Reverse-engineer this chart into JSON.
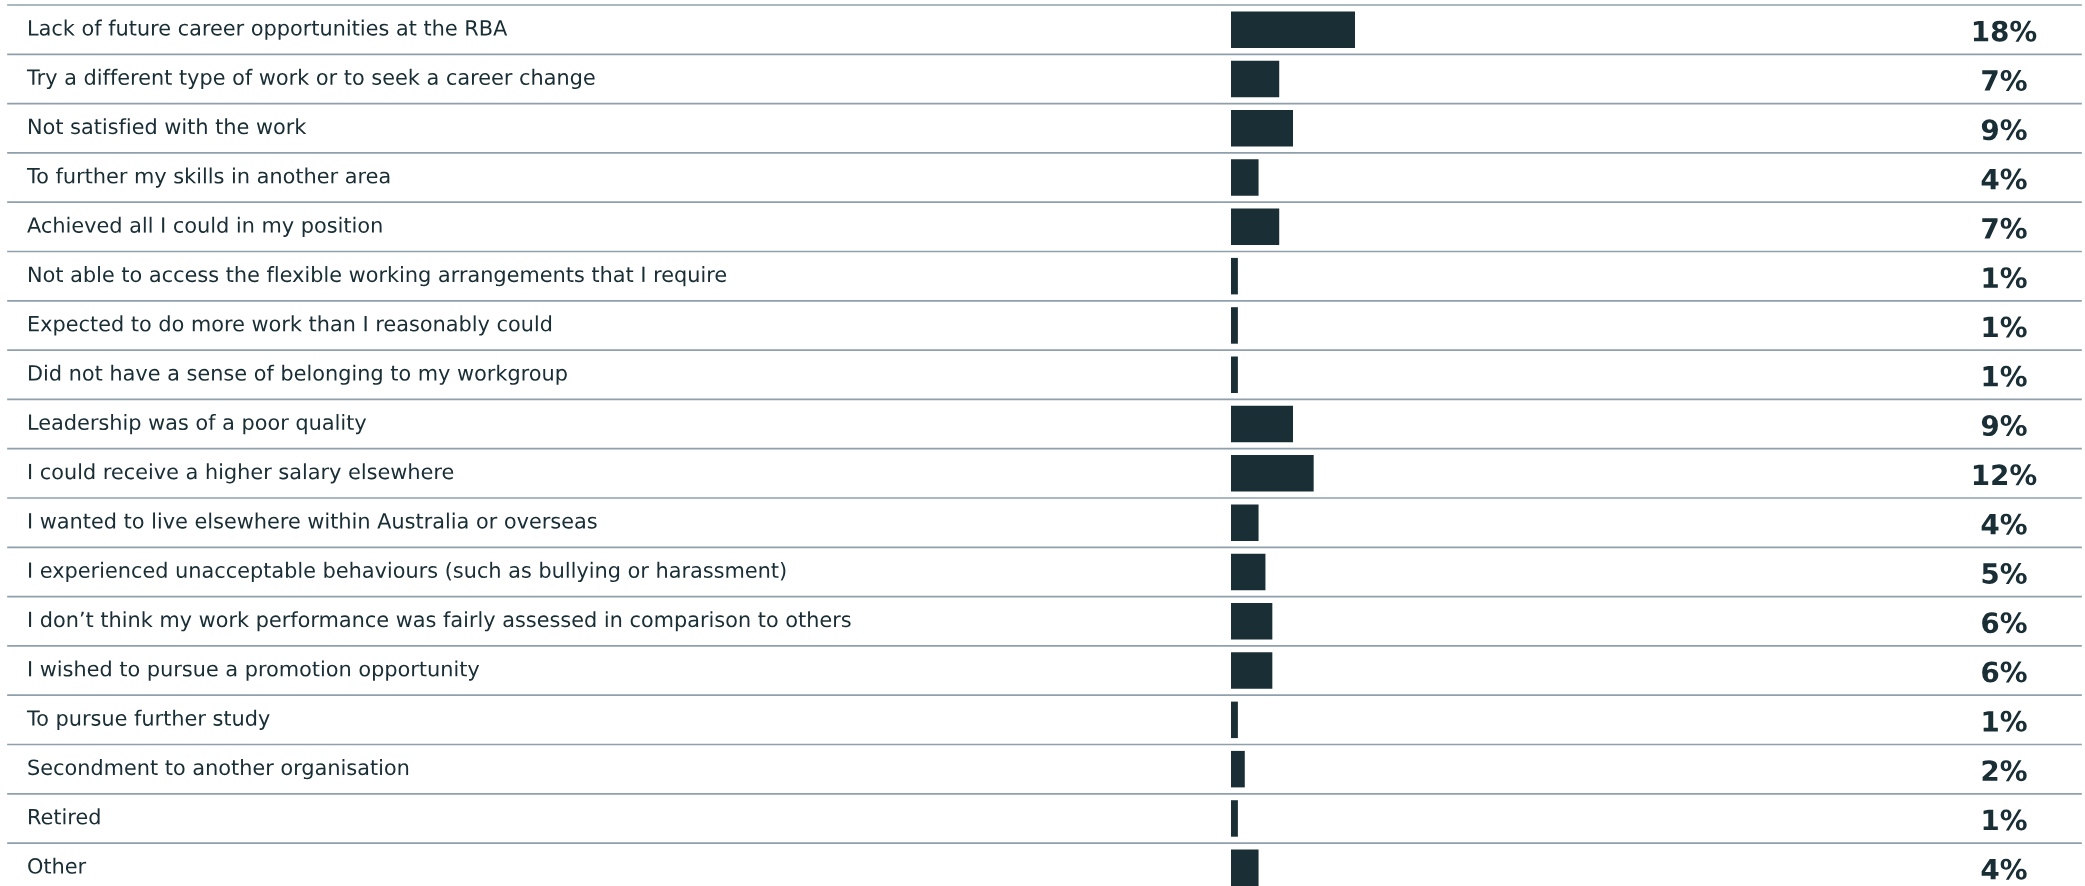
{
  "chart_data": {
    "type": "bar",
    "orientation": "horizontal",
    "categories": [
      "Lack of future career opportunities at the RBA",
      "Try a different type of work or to seek a career change",
      "Not satisfied with the work",
      "To further my skills in another area",
      "Achieved all I could in my position",
      "Not able to access the flexible working arrangements that I require",
      "Expected to do more work than I reasonably could",
      "Did not have a sense of belonging to my workgroup",
      "Leadership was of a poor quality",
      "I could receive a higher salary elsewhere",
      "I wanted to live elsewhere within Australia or overseas",
      "I experienced unacceptable behaviours (such as bullying or harassment)",
      "I don’t think my work performance was fairly assessed in comparison to others",
      "I wished to pursue a promotion opportunity",
      "To pursue further study",
      "Secondment to another organisation",
      "Retired",
      "Other"
    ],
    "values": [
      18,
      7,
      9,
      4,
      7,
      1,
      1,
      1,
      9,
      12,
      4,
      5,
      6,
      6,
      1,
      2,
      1,
      4
    ],
    "value_labels": [
      "18%",
      "7%",
      "9%",
      "4%",
      "7%",
      "1%",
      "1%",
      "1%",
      "9%",
      "12%",
      "4%",
      "5%",
      "6%",
      "6%",
      "1%",
      "2%",
      "1%",
      "4%"
    ],
    "color": "#1a2e35"
  }
}
